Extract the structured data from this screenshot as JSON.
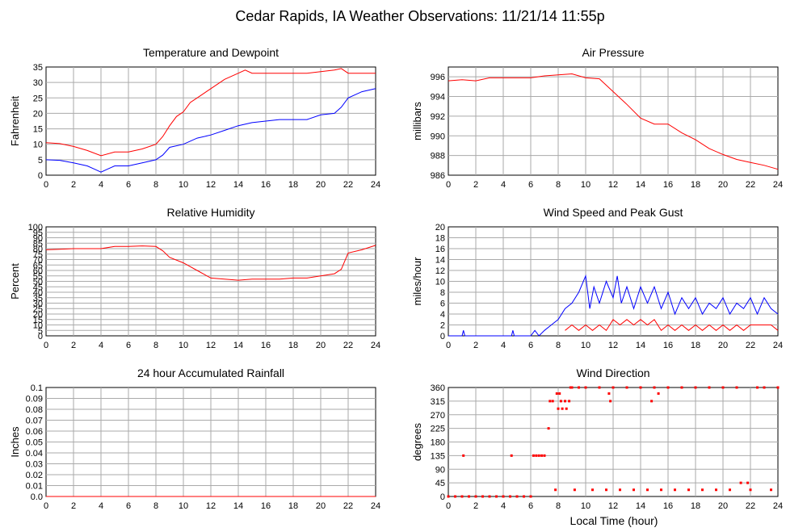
{
  "page_title": "Cedar Rapids, IA Weather Observations: 11/21/14 11:55p",
  "x_axis_label": "Local Time (hour)",
  "x_ticks": [
    "0",
    "2",
    "4",
    "6",
    "8",
    "10",
    "12",
    "14",
    "16",
    "18",
    "20",
    "22",
    "24"
  ],
  "chart_data": [
    {
      "id": "temp",
      "type": "line",
      "title": "Temperature and Dewpoint",
      "ylabel": "Fahrenheit",
      "xlim": [
        0,
        24
      ],
      "ylim": [
        0,
        35
      ],
      "yticks": [
        "0",
        "5",
        "10",
        "15",
        "20",
        "25",
        "30",
        "35"
      ],
      "grid": true,
      "series": [
        {
          "color": "#ff0000",
          "x": [
            0,
            1,
            2,
            3,
            4,
            5,
            6,
            7,
            8,
            8.5,
            9,
            9.5,
            10,
            10.5,
            11,
            12,
            13,
            14,
            14.5,
            15,
            16,
            17,
            18,
            19,
            20,
            21,
            21.5,
            22,
            23,
            24
          ],
          "values": [
            10.5,
            10.2,
            9.3,
            8,
            6.3,
            7.5,
            7.5,
            8.5,
            10,
            12.5,
            16,
            19,
            20.5,
            23.5,
            25,
            28,
            31,
            33,
            34,
            33,
            33,
            33,
            33,
            33,
            33.5,
            34,
            34.5,
            33,
            33,
            33
          ]
        },
        {
          "color": "#0000ff",
          "x": [
            0,
            1,
            2,
            3,
            3.5,
            4,
            4.5,
            5,
            6,
            7,
            8,
            8.5,
            9,
            10,
            11,
            12,
            13,
            14,
            15,
            16,
            17,
            18,
            19,
            20,
            21,
            21.5,
            22,
            23,
            24
          ],
          "values": [
            5,
            4.8,
            4,
            3,
            2,
            1,
            2,
            3,
            3,
            4,
            5,
            6.5,
            9,
            10,
            12,
            13,
            14.5,
            16,
            17,
            17.5,
            18,
            18,
            18,
            19.5,
            20,
            22,
            25,
            27,
            28
          ]
        }
      ]
    },
    {
      "id": "pressure",
      "type": "line",
      "title": "Air Pressure",
      "ylabel": "millibars",
      "xlim": [
        0,
        24
      ],
      "ylim": [
        986,
        997
      ],
      "yticks": [
        "986",
        "988",
        "990",
        "992",
        "994",
        "996"
      ],
      "grid": true,
      "series": [
        {
          "color": "#ff0000",
          "x": [
            0,
            1,
            2,
            3,
            4,
            5,
            6,
            7,
            8,
            9,
            10,
            11,
            12,
            13,
            14,
            15,
            16,
            17,
            18,
            19,
            20,
            21,
            22,
            23,
            24
          ],
          "values": [
            995.6,
            995.7,
            995.6,
            995.9,
            995.9,
            995.9,
            995.9,
            996.1,
            996.2,
            996.3,
            995.9,
            995.8,
            994.5,
            993.2,
            991.8,
            991.2,
            991.2,
            990.3,
            989.6,
            988.7,
            988.1,
            987.6,
            987.3,
            987,
            986.6
          ]
        }
      ]
    },
    {
      "id": "humidity",
      "type": "line",
      "title": "Relative Humidity",
      "ylabel": "Percent",
      "xlim": [
        0,
        24
      ],
      "ylim": [
        0,
        100
      ],
      "yticks": [
        "0",
        "5",
        "10",
        "15",
        "20",
        "25",
        "30",
        "35",
        "40",
        "45",
        "50",
        "55",
        "60",
        "65",
        "70",
        "75",
        "80",
        "85",
        "90",
        "95",
        "100"
      ],
      "grid": true,
      "series": [
        {
          "color": "#ff0000",
          "x": [
            0,
            1,
            2,
            3,
            4,
            5,
            6,
            7,
            8,
            8.5,
            9,
            10,
            11,
            12,
            13,
            14,
            15,
            16,
            17,
            18,
            19,
            20,
            21,
            21.5,
            22,
            23,
            24
          ],
          "values": [
            79,
            79.5,
            80,
            80,
            80,
            82,
            82,
            82.5,
            82,
            78,
            72,
            67,
            60,
            53,
            52,
            51,
            52,
            52,
            52,
            53,
            53,
            55,
            57,
            61,
            76,
            79,
            83
          ]
        }
      ]
    },
    {
      "id": "wind",
      "type": "line",
      "title": "Wind Speed and Peak Gust",
      "ylabel": "miles/hour",
      "xlim": [
        0,
        24
      ],
      "ylim": [
        0,
        20
      ],
      "yticks": [
        "0",
        "2",
        "4",
        "6",
        "8",
        "10",
        "12",
        "14",
        "16",
        "18",
        "20"
      ],
      "grid": true,
      "series": [
        {
          "color": "#0000ff",
          "x": [
            0,
            1,
            1.1,
            1.2,
            2,
            4,
            4.6,
            4.7,
            4.8,
            6,
            6.3,
            6.6,
            7,
            7.5,
            8,
            8.5,
            9,
            9.5,
            10,
            10.3,
            10.6,
            11,
            11.5,
            12,
            12.3,
            12.6,
            13,
            13.5,
            14,
            14.5,
            15,
            15.5,
            16,
            16.5,
            17,
            17.5,
            18,
            18.5,
            19,
            19.5,
            20,
            20.5,
            21,
            21.5,
            22,
            22.5,
            23,
            23.5,
            24
          ],
          "values": [
            0,
            0,
            1,
            0,
            0,
            0,
            0,
            1,
            0,
            0,
            1,
            0,
            1,
            2,
            3,
            5,
            6,
            8,
            11,
            5,
            9,
            6,
            10,
            7,
            11,
            6,
            9,
            5,
            9,
            6,
            9,
            5,
            8,
            4,
            7,
            5,
            7,
            4,
            6,
            5,
            7,
            4,
            6,
            5,
            7,
            4,
            7,
            5,
            4
          ]
        },
        {
          "color": "#ff0000",
          "x": [
            8.5,
            9,
            9.5,
            10,
            10.5,
            11,
            11.5,
            12,
            12.5,
            13,
            13.5,
            14,
            14.5,
            15,
            15.5,
            16,
            16.5,
            17,
            17.5,
            18,
            18.5,
            19,
            19.5,
            20,
            20.5,
            21,
            21.5,
            22,
            22.5,
            23,
            23.5,
            24
          ],
          "values": [
            1,
            2,
            1,
            2,
            1,
            2,
            1,
            3,
            2,
            3,
            2,
            3,
            2,
            3,
            1,
            2,
            1,
            2,
            1,
            2,
            1,
            2,
            1,
            2,
            1,
            2,
            1,
            2,
            2,
            2,
            2,
            1
          ]
        }
      ]
    },
    {
      "id": "rain",
      "type": "line",
      "title": "24 hour Accumulated Rainfall",
      "ylabel": "Inches",
      "xlim": [
        0,
        24
      ],
      "ylim": [
        0,
        0.1
      ],
      "yticks": [
        "0.0",
        "0.01",
        "0.02",
        "0.03",
        "0.04",
        "0.05",
        "0.06",
        "0.07",
        "0.08",
        "0.09",
        "0.1"
      ],
      "grid": true,
      "series": [
        {
          "color": "#ff0000",
          "x": [
            0,
            24
          ],
          "values": [
            0,
            0
          ]
        }
      ]
    },
    {
      "id": "direction",
      "type": "scatter",
      "title": "Wind Direction",
      "ylabel": "degrees",
      "xlim": [
        0,
        24
      ],
      "ylim": [
        0,
        360
      ],
      "yticks": [
        "0",
        "45",
        "90",
        "135",
        "180",
        "225",
        "270",
        "315",
        "360"
      ],
      "grid": true,
      "series": [
        {
          "color": "#ff0000",
          "x": [
            0,
            0.5,
            1,
            1.1,
            1.5,
            2,
            2.5,
            3,
            3.5,
            4,
            4.5,
            4.6,
            5,
            5.5,
            6,
            6.2,
            6.4,
            6.6,
            6.8,
            7,
            7.3,
            7.4,
            7.6,
            7.8,
            7.9,
            8,
            8.1,
            8.2,
            8.3,
            8.5,
            8.6,
            8.8,
            8.9,
            9,
            9.2,
            9.5,
            10,
            10.5,
            11,
            11.5,
            11.7,
            11.8,
            12,
            12.5,
            13,
            13.5,
            14,
            14.5,
            14.8,
            15,
            15.3,
            15.5,
            16,
            16.5,
            17,
            17.5,
            18,
            18.5,
            19,
            19.5,
            20,
            20.5,
            21,
            21.3,
            21.8,
            22,
            22.5,
            23,
            23.5,
            24
          ],
          "y": [
            0,
            0,
            0,
            135,
            0,
            0,
            0,
            0,
            0,
            0,
            0,
            135,
            0,
            0,
            0,
            135,
            135,
            135,
            135,
            135,
            225,
            315,
            315,
            22,
            340,
            290,
            340,
            315,
            290,
            315,
            290,
            315,
            360,
            360,
            22,
            360,
            360,
            22,
            360,
            22,
            340,
            315,
            360,
            22,
            360,
            22,
            360,
            22,
            315,
            360,
            340,
            22,
            360,
            22,
            360,
            22,
            360,
            22,
            360,
            22,
            360,
            22,
            360,
            45,
            45,
            22,
            360,
            360,
            22,
            360
          ]
        }
      ]
    }
  ]
}
